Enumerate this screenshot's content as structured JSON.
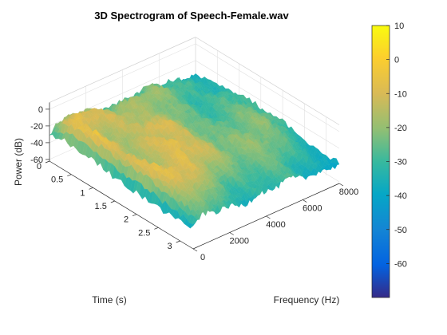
{
  "chart_data": {
    "type": "surface",
    "title": "3D Spectrogram of Speech-Female.wav",
    "xlabel": "Frequency (Hz)",
    "ylabel": "Time (s)",
    "zlabel": "Power (dB)",
    "xlim": [
      0,
      8000
    ],
    "ylim": [
      0,
      3.3
    ],
    "zlim": [
      -70,
      10
    ],
    "x_ticks": [
      0,
      2000,
      4000,
      6000,
      8000
    ],
    "y_ticks": [
      0,
      0.5,
      1,
      1.5,
      2,
      2.5,
      3
    ],
    "z_ticks": [
      0,
      -20,
      -40,
      -60
    ],
    "colorbar": {
      "colormap": "parula",
      "clim": [
        -70,
        10
      ],
      "ticks": [
        10,
        0,
        -10,
        -20,
        -30,
        -40,
        -50,
        -60
      ]
    },
    "grid": true,
    "surface_summary": {
      "frequency_points_hz": [
        0,
        250,
        500,
        750,
        1000,
        1500,
        2000,
        2500,
        3000,
        3500,
        4000,
        5000,
        6000,
        7000,
        8000
      ],
      "time_points_s": [
        0,
        0.3,
        0.6,
        0.9,
        1.2,
        1.5,
        1.8,
        2.1,
        2.4,
        2.7,
        3.0,
        3.3
      ],
      "power_db": [
        [
          -32,
          -28,
          -26,
          -24,
          -20,
          -22,
          -24,
          -26,
          -26,
          -28,
          -28,
          -30,
          -30,
          -32,
          -32
        ],
        [
          -28,
          -14,
          -12,
          -10,
          -8,
          -10,
          -12,
          -14,
          -14,
          -16,
          -18,
          -22,
          -24,
          -28,
          -30
        ],
        [
          -30,
          -10,
          -12,
          -14,
          -14,
          -12,
          -10,
          -12,
          -14,
          -18,
          -22,
          -26,
          -28,
          -30,
          -32
        ],
        [
          -32,
          -14,
          -6,
          -12,
          -16,
          -14,
          -12,
          -10,
          -14,
          -20,
          -22,
          -24,
          -26,
          -28,
          -30
        ],
        [
          -32,
          -12,
          -8,
          -10,
          -12,
          -14,
          -16,
          -12,
          -8,
          -16,
          -20,
          -24,
          -26,
          -28,
          -30
        ],
        [
          -34,
          -16,
          -10,
          -12,
          -14,
          -12,
          -10,
          -14,
          -16,
          -14,
          -20,
          -22,
          -24,
          -26,
          -30
        ],
        [
          -34,
          -12,
          -6,
          -8,
          -12,
          -16,
          -14,
          -10,
          -12,
          -16,
          -18,
          -22,
          -24,
          -26,
          -28
        ],
        [
          -34,
          -10,
          -8,
          -6,
          -10,
          -14,
          -12,
          -14,
          -10,
          -12,
          -16,
          -20,
          -24,
          -26,
          -28
        ],
        [
          -36,
          -18,
          -10,
          -6,
          -8,
          -12,
          -14,
          -16,
          -18,
          -16,
          -18,
          -22,
          -24,
          -28,
          -30
        ],
        [
          -38,
          -24,
          -20,
          -16,
          -14,
          -16,
          -18,
          -20,
          -22,
          -22,
          -24,
          -26,
          -28,
          -30,
          -32
        ],
        [
          -40,
          -30,
          -26,
          -24,
          -22,
          -24,
          -26,
          -26,
          -28,
          -28,
          -30,
          -30,
          -32,
          -32,
          -34
        ],
        [
          -40,
          -34,
          -30,
          -30,
          -28,
          -30,
          -30,
          -32,
          -32,
          -32,
          -34,
          -34,
          -34,
          -36,
          -36
        ]
      ]
    }
  }
}
